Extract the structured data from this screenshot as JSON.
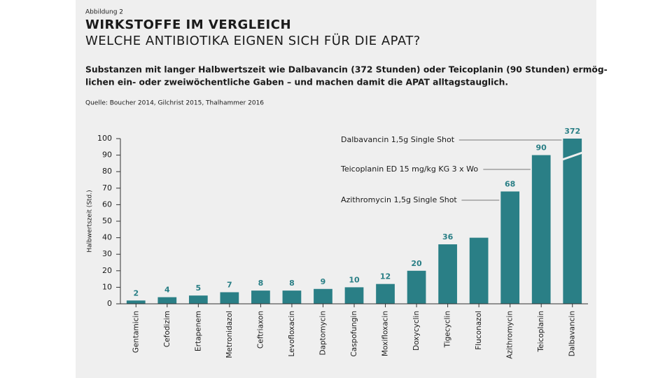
{
  "figure_label": "Abbildung 2",
  "chart_data": {
    "type": "bar",
    "title": "WIRKSTOFFE IM VERGLEICH",
    "subtitle": "WELCHE ANTIBIOTIKA EIGNEN SICH FÜR DIE APAT?",
    "description": [
      "Substanzen mit langer Halbwertszeit wie Dalbavancin (372 Stunden) oder Teicoplanin (90 Stunden) ermög-",
      "lichen ein- oder zweiwöchentliche Gaben – und machen damit die APAT alltagstauglich."
    ],
    "source": "Quelle: Boucher 2014, Gilchrist 2015, Thalhammer 2016",
    "y_label": "Halbwertszeit (Std.)",
    "categories": [
      "Gentamicin",
      "Cefodizim",
      "Ertapenem",
      "Metronidazol",
      "Ceftriaxon",
      "Levofloxacin",
      "Daptomycin",
      "Caspofungin",
      "Moxifloxacin",
      "Doxycyclin",
      "Tigecyclin",
      "Fluconazol",
      "Azithromycin",
      "Teicoplanin",
      "Dalbavancin"
    ],
    "values": [
      2,
      4,
      5,
      7,
      8,
      8,
      9,
      10,
      12,
      20,
      36,
      40,
      68,
      90,
      372
    ],
    "value_labels": [
      "2",
      "4",
      "5",
      "7",
      "8",
      "8",
      "9",
      "10",
      "12",
      "20",
      "36",
      null,
      "68",
      "90",
      "372"
    ],
    "color": "#2a7f86",
    "ylim": [
      0,
      100
    ],
    "yticks": [
      0,
      10,
      20,
      30,
      40,
      50,
      60,
      70,
      80,
      90,
      100
    ],
    "grid": false,
    "annotations": [
      "Dalbavancin 1,5g Single Shot",
      "Teicoplanin ED 15 mg/kg KG 3 x Wo",
      "Azithromycin 1,5g Single Shot"
    ]
  }
}
